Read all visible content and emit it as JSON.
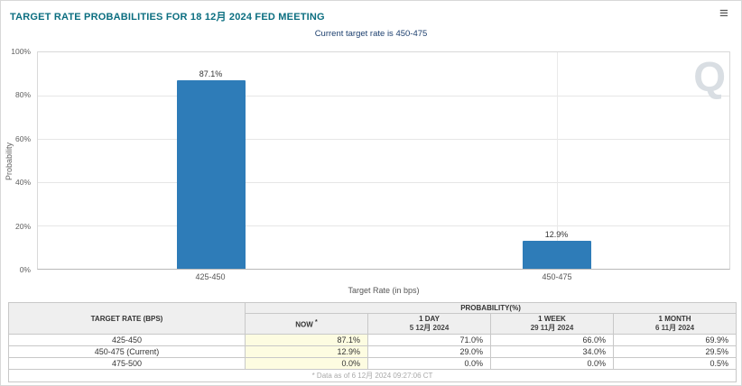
{
  "header": {
    "title": "TARGET RATE PROBABILITIES FOR 18 12月 2024 FED MEETING",
    "menu_icon": "≡"
  },
  "chart_data": {
    "type": "bar",
    "title": "",
    "subtitle": "Current target rate is 450-475",
    "categories": [
      "425-450",
      "450-475"
    ],
    "values": [
      87.1,
      12.9
    ],
    "value_labels": [
      "87.1%",
      "12.9%"
    ],
    "xlabel": "Target Rate (in bps)",
    "ylabel": "Probability",
    "ylim": [
      0,
      100
    ],
    "yticks": [
      "100%",
      "80%",
      "60%",
      "40%",
      "20%",
      "0%"
    ],
    "bar_color": "#2E7CB8",
    "grid": "horizontal",
    "legend_position": "none",
    "watermark": "Q"
  },
  "table": {
    "rate_header": "TARGET RATE (BPS)",
    "group_header": "PROBABILITY(%)",
    "columns": [
      {
        "label": "NOW",
        "sup": "*",
        "date": ""
      },
      {
        "label": "1 DAY",
        "date": "5 12月 2024"
      },
      {
        "label": "1 WEEK",
        "date": "29 11月 2024"
      },
      {
        "label": "1 MONTH",
        "date": "6 11月 2024"
      }
    ],
    "rows": [
      {
        "rate": "425-450",
        "now": "87.1%",
        "day": "71.0%",
        "week": "66.0%",
        "month": "69.9%"
      },
      {
        "rate": "450-475 (Current)",
        "now": "12.9%",
        "day": "29.0%",
        "week": "34.0%",
        "month": "29.5%"
      },
      {
        "rate": "475-500",
        "now": "0.0%",
        "day": "0.0%",
        "week": "0.0%",
        "month": "0.5%"
      }
    ],
    "footnote": "* Data as of 6 12月 2024 09:27:06 CT"
  }
}
